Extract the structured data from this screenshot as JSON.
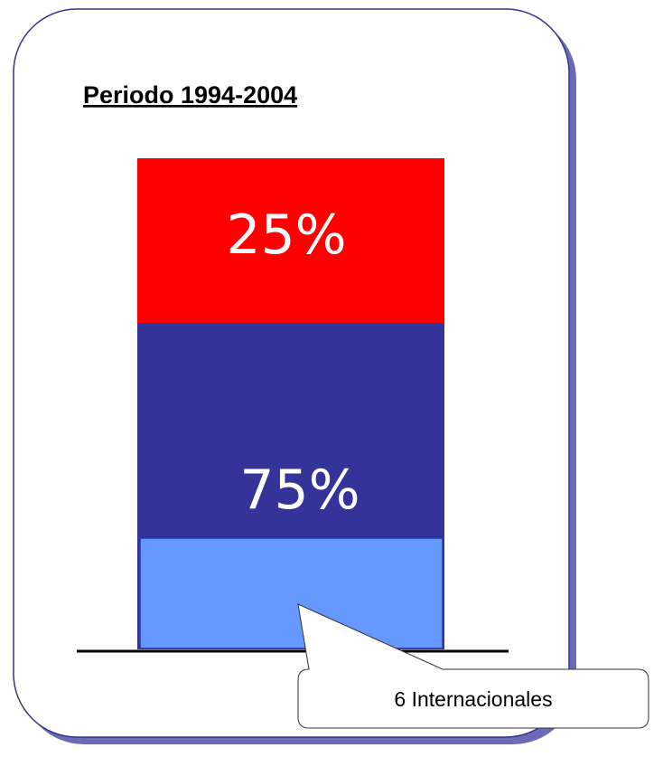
{
  "title": "Periodo 1994-2004",
  "bar": {
    "segments": [
      {
        "label": "25%"
      },
      {
        "label": "75%"
      }
    ]
  },
  "callout": {
    "text": "6 Internacionales"
  }
}
